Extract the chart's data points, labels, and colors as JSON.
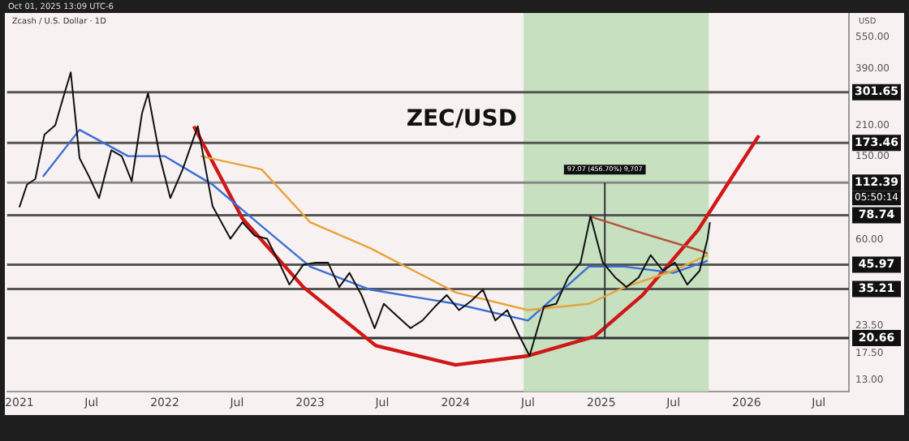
{
  "chart_data": {
    "type": "line",
    "title": "ZEC/USD",
    "subtitle": "Zcash / U.S. Dollar · 1D",
    "ylabel": "USD",
    "log": "y",
    "grid": false,
    "legend": false,
    "marker": "none",
    "xlim": [
      "2020-12-01",
      "2026-09-15"
    ],
    "xticks": [
      {
        "value": "2021-01-01",
        "label": "2021"
      },
      {
        "value": "2021-07-01",
        "label": "Jul"
      },
      {
        "value": "2022-01-01",
        "label": "2022"
      },
      {
        "value": "2022-07-01",
        "label": "Jul"
      },
      {
        "value": "2023-01-01",
        "label": "2023"
      },
      {
        "value": "2023-07-01",
        "label": "Jul"
      },
      {
        "value": "2024-01-01",
        "label": "2024"
      },
      {
        "value": "2024-07-01",
        "label": "Jul"
      },
      {
        "value": "2025-01-01",
        "label": "2025"
      },
      {
        "value": "2025-07-01",
        "label": "Jul"
      },
      {
        "value": "2026-01-01",
        "label": "2026"
      },
      {
        "value": "2026-07-01",
        "label": "Jul"
      }
    ],
    "ylim": [
      11.5,
      715
    ],
    "yticks": [
      {
        "value": 13,
        "label": "13.00"
      },
      {
        "value": 17.5,
        "label": "17.50"
      },
      {
        "value": 23.5,
        "label": "23.50"
      },
      {
        "value": 60,
        "label": "60.00"
      },
      {
        "value": 150,
        "label": "150.00"
      },
      {
        "value": 210,
        "label": "210.00"
      },
      {
        "value": 390,
        "label": "390.00"
      },
      {
        "value": 550,
        "label": "550.00"
      }
    ],
    "series": [
      {
        "color": "#111111",
        "x": [
          "2021-01-01",
          "2021-01-20",
          "2021-02-10",
          "2021-03-05",
          "2021-04-01",
          "2021-04-20",
          "2021-05-10",
          "2021-06-01",
          "2021-06-25",
          "2021-07-20",
          "2021-08-20",
          "2021-09-15",
          "2021-10-10",
          "2021-11-05",
          "2021-11-20",
          "2021-12-20",
          "2022-01-15",
          "2022-02-15",
          "2022-03-25",
          "2022-05-01",
          "2022-06-15",
          "2022-07-15",
          "2022-08-15",
          "2022-09-15",
          "2022-10-15",
          "2022-11-10",
          "2022-12-15",
          "2023-01-15",
          "2023-02-15",
          "2023-03-15",
          "2023-04-10",
          "2023-05-10",
          "2023-06-12",
          "2023-07-05",
          "2023-08-10",
          "2023-09-10",
          "2023-10-10",
          "2023-11-10",
          "2023-12-10",
          "2024-01-10",
          "2024-02-10",
          "2024-03-10",
          "2024-04-10",
          "2024-05-10",
          "2024-06-10",
          "2024-07-05",
          "2024-08-10",
          "2024-09-10",
          "2024-10-10",
          "2024-11-10",
          "2024-12-05",
          "2025-01-05",
          "2025-02-05",
          "2025-03-05",
          "2025-04-05",
          "2025-05-05",
          "2025-06-05",
          "2025-07-05",
          "2025-08-05",
          "2025-09-05",
          "2025-09-25",
          "2025-10-01"
        ],
        "values": [
          86,
          110,
          117,
          190,
          210,
          280,
          374,
          147,
          120,
          95,
          160,
          150,
          114,
          240,
          298,
          148,
          95,
          130,
          208,
          87,
          61,
          73,
          63,
          61,
          47,
          37,
          46,
          47,
          47,
          36,
          42,
          33,
          23,
          30,
          26,
          23,
          25,
          29,
          33,
          28,
          31,
          35,
          25,
          28,
          21,
          17,
          29,
          30,
          40,
          47,
          78,
          47,
          40,
          36,
          40,
          51,
          43,
          47,
          37,
          43,
          61,
          73
        ]
      },
      {
        "color": "#e8a33a",
        "x": [
          "2022-04-01",
          "2022-09-01",
          "2023-01-01",
          "2023-06-01",
          "2024-01-01",
          "2024-07-01",
          "2024-12-01",
          "2025-03-01",
          "2025-07-01",
          "2025-09-25"
        ],
        "values": [
          150,
          130,
          73,
          55,
          34,
          28,
          30,
          36,
          43,
          51
        ]
      },
      {
        "color": "#3b6fd6",
        "x": [
          "2021-03-01",
          "2021-06-01",
          "2021-10-01",
          "2022-01-01",
          "2022-05-01",
          "2022-09-01",
          "2023-01-01",
          "2023-06-01",
          "2024-01-01",
          "2024-07-01",
          "2024-12-01",
          "2025-03-01",
          "2025-07-01",
          "2025-09-25"
        ],
        "values": [
          120,
          200,
          150,
          150,
          110,
          70,
          45,
          35,
          30,
          25,
          45,
          45,
          42,
          48
        ]
      },
      {
        "color": "#b5523b",
        "x": [
          "2024-12-01",
          "2025-04-01",
          "2025-09-01",
          "2025-09-25"
        ],
        "values": [
          78,
          66,
          54,
          52
        ]
      },
      {
        "color": "#333333",
        "x": [
          "2025-01-10",
          "2025-01-10"
        ],
        "values": [
          20.66,
          112.39
        ]
      },
      {
        "color": "#d01818",
        "x": [
          "2022-03-15",
          "2022-07-15",
          "2022-12-15",
          "2023-06-15",
          "2024-01-01",
          "2024-07-01",
          "2024-12-15",
          "2025-04-15",
          "2025-09-01",
          "2025-12-01",
          "2026-02-01"
        ],
        "values": [
          208,
          76,
          36,
          19,
          15.4,
          17,
          21,
          33,
          67,
          124,
          188
        ]
      }
    ],
    "ref_lines": [
      {
        "axis": "y",
        "value": 301.65,
        "label": "301.65",
        "color": "#555555"
      },
      {
        "axis": "y",
        "value": 173.46,
        "label": "173.46",
        "color": "#555555"
      },
      {
        "axis": "y",
        "value": 112.39,
        "label": "112.39",
        "color": "#888888"
      },
      {
        "axis": "y",
        "value": 78.74,
        "label": "78.74",
        "color": "#555555"
      },
      {
        "axis": "y",
        "value": 45.97,
        "label": "45.97",
        "color": "#555555"
      },
      {
        "axis": "y",
        "value": 35.21,
        "label": "35.21",
        "color": "#555555"
      },
      {
        "axis": "y",
        "value": 20.66,
        "label": "20.66",
        "color": "#333333"
      }
    ],
    "bands": [
      {
        "axis": "x",
        "from": "2024-06-20",
        "to": "2025-09-28",
        "color": "#b9dcb4"
      }
    ],
    "annotations": [
      "Oct 01, 2025 13:09 UTC-6",
      {
        "text": "05:50:14",
        "y": 112.39
      },
      {
        "text": "97.07 (456.70%) 9,707",
        "x": "2025-01-10",
        "y": 112.39
      }
    ]
  }
}
